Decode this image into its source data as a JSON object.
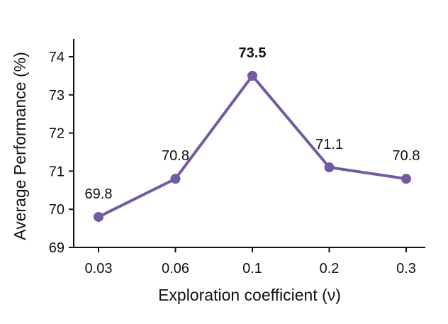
{
  "chart_data": {
    "type": "line",
    "categories": [
      "0.03",
      "0.06",
      "0.1",
      "0.2",
      "0.3"
    ],
    "series": [
      {
        "values": [
          69.8,
          70.8,
          73.5,
          71.1,
          70.8
        ],
        "color": "#7459a3"
      }
    ],
    "data_labels": [
      "69.8",
      "70.8",
      "73.5",
      "71.1",
      "70.8"
    ],
    "highlighted_index": 2,
    "xlabel": "Exploration coefficient (ν)",
    "ylabel": "Average Performance (%)",
    "ylim": [
      69,
      74.5
    ],
    "yticks": [
      69,
      70,
      71,
      72,
      73,
      74
    ],
    "ytick_labels": [
      "69",
      "70",
      "71",
      "72",
      "73",
      "74"
    ],
    "grid": false,
    "legend": "none"
  }
}
